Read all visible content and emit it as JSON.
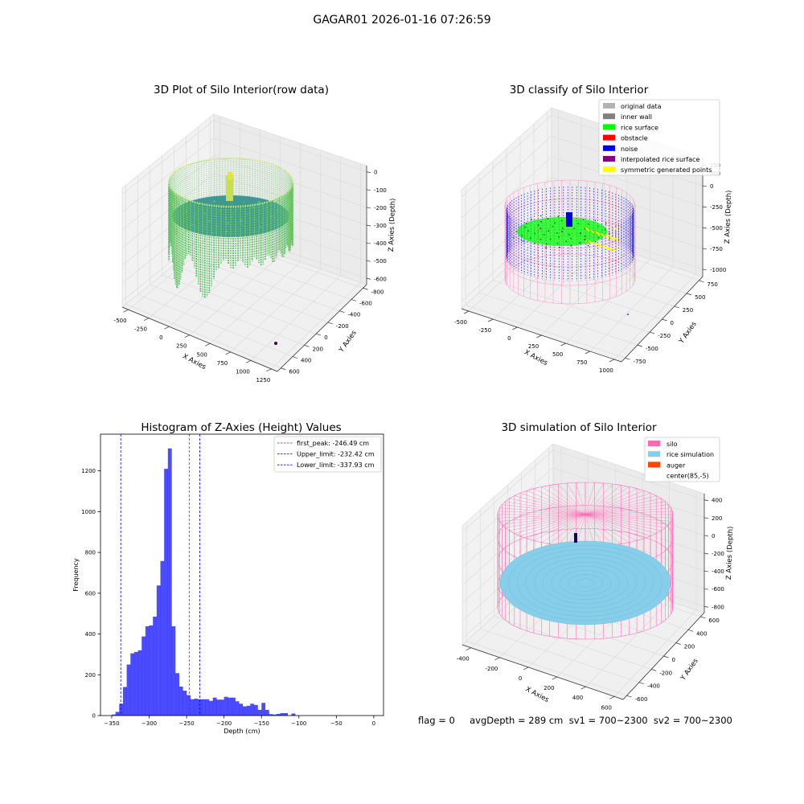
{
  "figure": {
    "suptitle": "GAGAR01 2026-01-16 07:26:59"
  },
  "panels": {
    "raw": {
      "title": "3D Plot of Silo Interior(row data)",
      "xlabel": "X Axies",
      "ylabel": "Y Axies",
      "zlabel": "Z Axies (Depth)",
      "xticks": [
        "-500",
        "-250",
        "0",
        "250",
        "500",
        "750",
        "1000",
        "1250"
      ],
      "yticks": [
        "-800",
        "-600",
        "-400",
        "-200",
        "0",
        "200",
        "400",
        "600"
      ],
      "zticks": [
        "0",
        "-100",
        "-200",
        "-300",
        "-400",
        "-500",
        "-600"
      ]
    },
    "classify": {
      "title": "3D classify of Silo Interior",
      "xlabel": "X Axies",
      "ylabel": "Y Axies",
      "zlabel": "Z Axies (Depth)",
      "xticks": [
        "-500",
        "-250",
        "0",
        "250",
        "500",
        "750",
        "1000"
      ],
      "yticks": [
        "-750",
        "-500",
        "-250",
        "0",
        "250",
        "500",
        "750"
      ],
      "zticks": [
        "250",
        "0",
        "-250",
        "-500",
        "-750",
        "-1000"
      ],
      "zextra": "500",
      "legend": [
        {
          "label": "original data",
          "color": "#b3b3b3"
        },
        {
          "label": "inner wall",
          "color": "#808080"
        },
        {
          "label": "rice surface",
          "color": "#00ff00"
        },
        {
          "label": "obstacle",
          "color": "#ff0000"
        },
        {
          "label": "noise",
          "color": "#0000ff"
        },
        {
          "label": "interpolated rice surface",
          "color": "#800080"
        },
        {
          "label": "symmetric generated points",
          "color": "#ffff00"
        }
      ]
    },
    "simulation": {
      "title": "3D simulation of Silo Interior",
      "xlabel": "X Axies",
      "ylabel": "Y Axies",
      "zlabel": "Z Axies (Depth)",
      "xticks": [
        "-400",
        "-200",
        "0",
        "200",
        "400",
        "600"
      ],
      "yticks": [
        "-600",
        "-400",
        "-200",
        "0",
        "200",
        "400",
        "600"
      ],
      "zticks": [
        "400",
        "200",
        "0",
        "-200",
        "-400",
        "-600",
        "-800"
      ],
      "legend": [
        {
          "label": "silo",
          "color": "#ff69b4"
        },
        {
          "label": "rice simulation",
          "color": "#87ceeb"
        },
        {
          "label": "auger",
          "color": "#ff4500"
        },
        {
          "label": "center(85,-5)",
          "color": ""
        }
      ]
    },
    "status": {
      "text": "flag = 0     avgDepth = 289 cm  sv1 = 700~2300  sv2 = 700~2300"
    }
  },
  "chart_data": [
    {
      "type": "scatter",
      "title": "3D Plot of Silo Interior(row data)",
      "xlabel": "X Axies",
      "ylabel": "Y Axies",
      "zlabel": "Z Axies (Depth)",
      "xlim": [
        -600,
        1300
      ],
      "ylim": [
        -800,
        650
      ],
      "zlim": [
        -650,
        30
      ],
      "series": [
        {
          "description_key": "silo wall ring",
          "center": [
            85,
            -5
          ],
          "radius": 520,
          "z": [
            -320,
            -40
          ]
        },
        {
          "description_key": "rice surface",
          "z_approx": -250
        },
        {
          "description_key": "outlier point",
          "x": 1180,
          "y": -720,
          "z": -700
        }
      ],
      "grid": true
    },
    {
      "type": "scatter",
      "title": "3D classify of Silo Interior",
      "xlabel": "X Axies",
      "ylabel": "Y Axies",
      "zlabel": "Z Axies (Depth)",
      "xlim": [
        -600,
        1100
      ],
      "ylim": [
        -800,
        800
      ],
      "zlim": [
        -1050,
        350
      ],
      "legend_position": "top-right",
      "grid": true
    },
    {
      "type": "bar",
      "title": "Histogram of Z-Axies (Height) Values",
      "xlabel": "Depth (cm)",
      "ylabel": "Frequency",
      "xlim": [
        -365,
        13
      ],
      "ylim": [
        0,
        1380
      ],
      "bin_start": -350,
      "bin_width": 5,
      "values": [
        5,
        18,
        58,
        140,
        250,
        305,
        312,
        320,
        388,
        438,
        442,
        485,
        638,
        758,
        1210,
        1310,
        438,
        208,
        142,
        122,
        100,
        80,
        83,
        80,
        80,
        80,
        72,
        88,
        78,
        78,
        92,
        88,
        88,
        70,
        58,
        45,
        48,
        58,
        52,
        28,
        62,
        28,
        7,
        5,
        8,
        12,
        12,
        0,
        10,
        0
      ],
      "xticks": [
        -350,
        -300,
        -250,
        -200,
        -150,
        -100,
        -50,
        0
      ],
      "yticks": [
        0,
        200,
        400,
        600,
        800,
        1000,
        1200
      ],
      "lines": [
        {
          "x": -246.49,
          "color": "#ff0000",
          "label": "first_peak: -246.49 cm"
        },
        {
          "x": -232.42,
          "color": "#0000ff",
          "label": "Upper_limit: -232.42 cm"
        },
        {
          "x": -337.93,
          "color": "#0000ff",
          "label": "Lower_limit: -337.93 cm"
        }
      ],
      "bar_color": "#0000ff",
      "legend_position": "top-right"
    },
    {
      "type": "scatter",
      "title": "3D simulation of Silo Interior",
      "xlabel": "X Axies",
      "ylabel": "Y Axies",
      "zlabel": "Z Axies (Depth)",
      "xlim": [
        -500,
        700
      ],
      "ylim": [
        -700,
        700
      ],
      "zlim": [
        -900,
        450
      ],
      "legend_position": "top-right",
      "grid": true
    }
  ]
}
